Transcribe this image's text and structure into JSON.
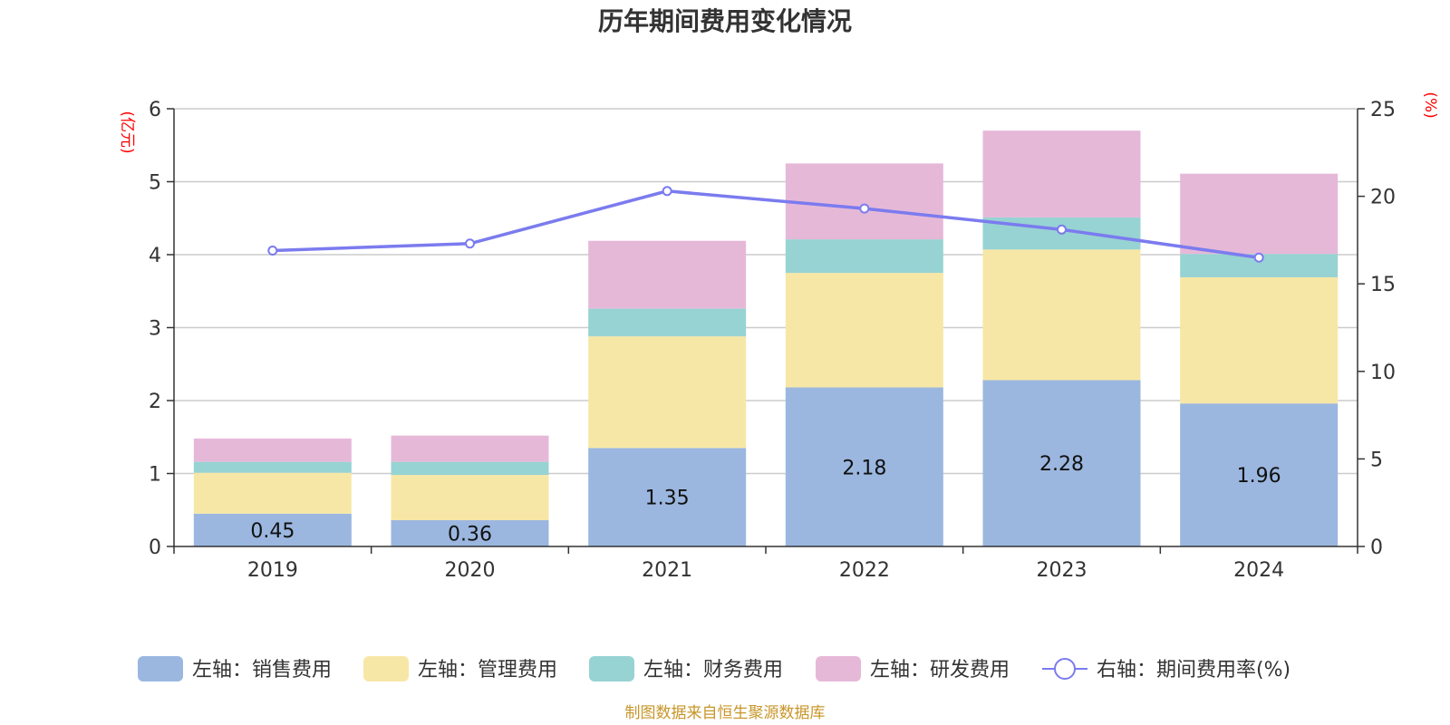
{
  "chart_data": {
    "type": "bar",
    "stacked": true,
    "title": "历年期间费用变化情况",
    "categories": [
      "2019",
      "2020",
      "2021",
      "2022",
      "2023",
      "2024"
    ],
    "left_axis": {
      "unit": "(亿元)",
      "ylim": [
        0,
        6
      ],
      "ticks": [
        "0",
        "1",
        "2",
        "3",
        "4",
        "5",
        "6"
      ]
    },
    "right_axis": {
      "unit": "(%)",
      "ylim": [
        0,
        25
      ],
      "ticks": [
        "0",
        "5",
        "10",
        "15",
        "20",
        "25"
      ]
    },
    "series": [
      {
        "name": "左轴：销售费用",
        "type": "bar",
        "axis": "left",
        "color": "#9bb7e0",
        "values": [
          0.45,
          0.36,
          1.35,
          2.18,
          2.28,
          1.96
        ],
        "labels": [
          "0.45",
          "0.36",
          "1.35",
          "2.18",
          "2.28",
          "1.96"
        ]
      },
      {
        "name": "左轴：管理费用",
        "type": "bar",
        "axis": "left",
        "color": "#f7e7a6",
        "values": [
          0.56,
          0.62,
          1.53,
          1.57,
          1.79,
          1.73
        ]
      },
      {
        "name": "左轴：财务费用",
        "type": "bar",
        "axis": "left",
        "color": "#97d3d3",
        "values": [
          0.15,
          0.18,
          0.38,
          0.46,
          0.44,
          0.32
        ]
      },
      {
        "name": "左轴：研发费用",
        "type": "bar",
        "axis": "left",
        "color": "#e6b8d8",
        "values": [
          0.32,
          0.36,
          0.93,
          1.04,
          1.19,
          1.1
        ]
      },
      {
        "name": "右轴：期间费用率(%)",
        "type": "line",
        "axis": "right",
        "color": "#7b7bef",
        "values": [
          16.9,
          17.3,
          20.3,
          19.3,
          18.1,
          16.5
        ]
      }
    ],
    "legend_position": "bottom",
    "grid": true
  },
  "footer": {
    "source": "制图数据来自恒生聚源数据库"
  }
}
